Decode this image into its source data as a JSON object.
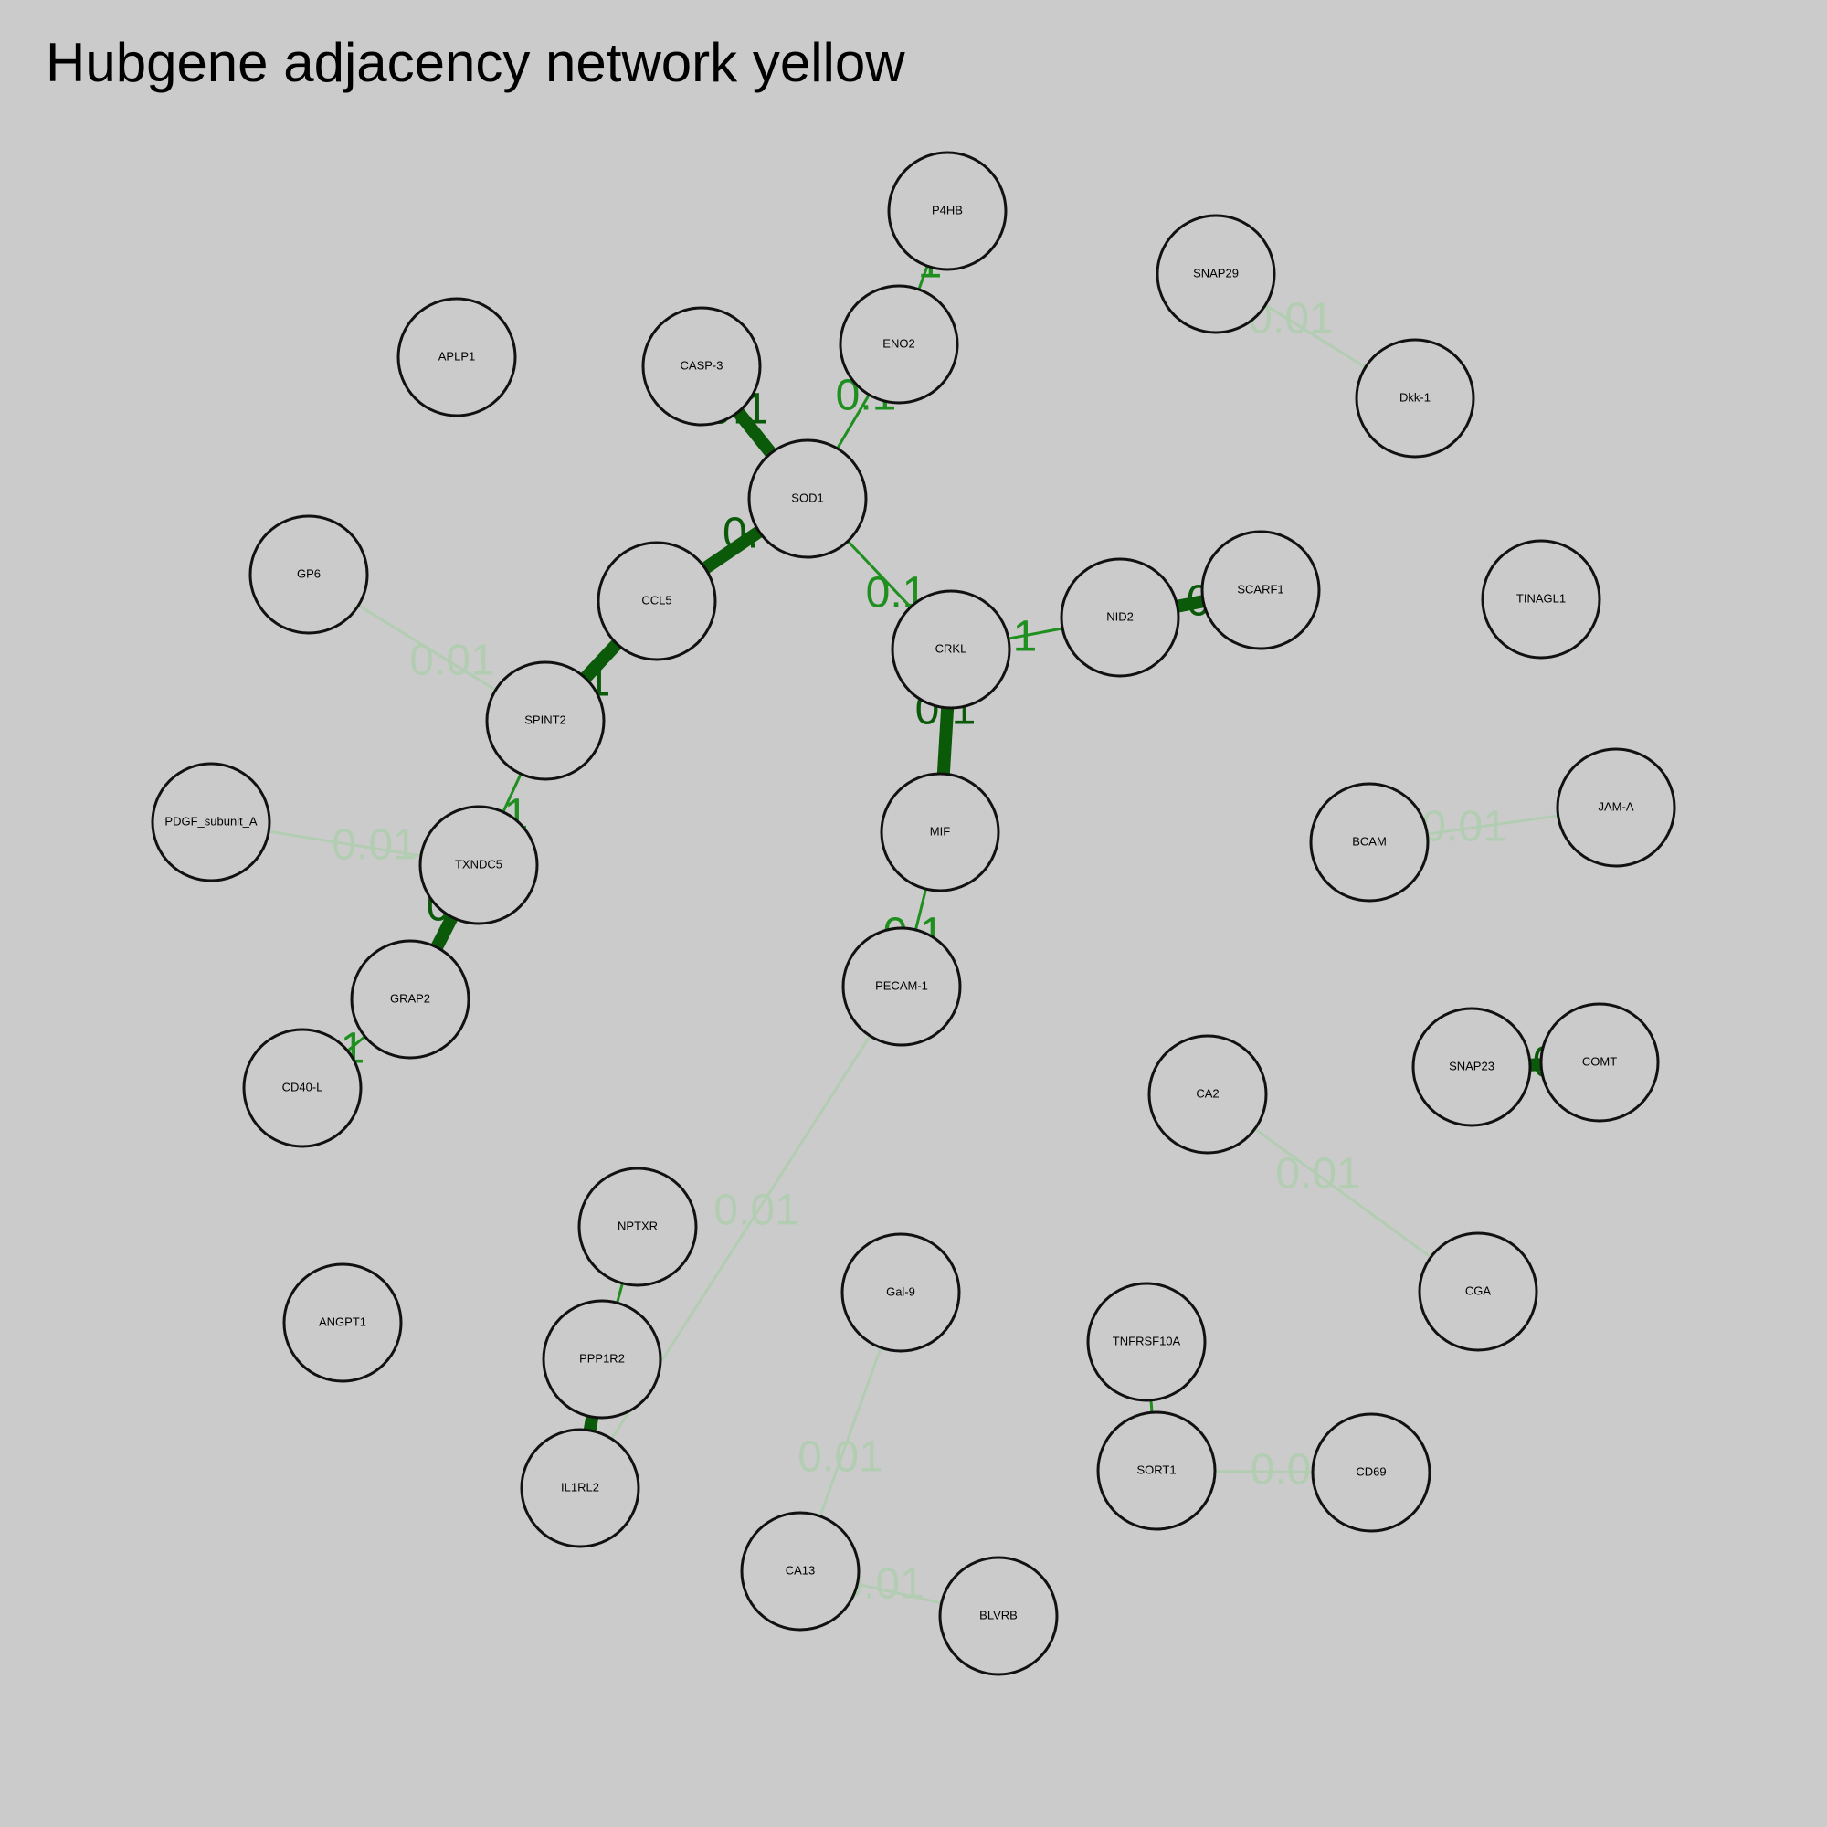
{
  "title": "Hubgene adjacency network yellow",
  "colors": {
    "background": "#cbcbcb",
    "strong_edge": "#0a5a0a",
    "medium_edge": "#1f8f1f",
    "weak_edge": "#b3cdb3",
    "node_stroke": "#111111"
  },
  "nodes": [
    {
      "id": "P4HB",
      "label": "P4HB"
    },
    {
      "id": "SNAP29",
      "label": "SNAP29"
    },
    {
      "id": "APLP1",
      "label": "APLP1"
    },
    {
      "id": "CASP-3",
      "label": "CASP-3"
    },
    {
      "id": "ENO2",
      "label": "ENO2"
    },
    {
      "id": "Dkk-1",
      "label": "Dkk-1"
    },
    {
      "id": "SOD1",
      "label": "SOD1"
    },
    {
      "id": "GP6",
      "label": "GP6"
    },
    {
      "id": "CCL5",
      "label": "CCL5"
    },
    {
      "id": "SCARF1",
      "label": "SCARF1"
    },
    {
      "id": "TINAGL1",
      "label": "TINAGL1"
    },
    {
      "id": "NID2",
      "label": "NID2"
    },
    {
      "id": "CRKL",
      "label": "CRKL"
    },
    {
      "id": "SPINT2",
      "label": "SPINT2"
    },
    {
      "id": "JAM-A",
      "label": "JAM-A"
    },
    {
      "id": "PDGF_subunit_A",
      "label": "PDGF_subunit_A"
    },
    {
      "id": "MIF",
      "label": "MIF"
    },
    {
      "id": "BCAM",
      "label": "BCAM"
    },
    {
      "id": "TXNDC5",
      "label": "TXNDC5"
    },
    {
      "id": "PECAM-1",
      "label": "PECAM-1"
    },
    {
      "id": "GRAP2",
      "label": "GRAP2"
    },
    {
      "id": "COMT",
      "label": "COMT"
    },
    {
      "id": "SNAP23",
      "label": "SNAP23"
    },
    {
      "id": "CD40-L",
      "label": "CD40-L"
    },
    {
      "id": "CA2",
      "label": "CA2"
    },
    {
      "id": "NPTXR",
      "label": "NPTXR"
    },
    {
      "id": "CGA",
      "label": "CGA"
    },
    {
      "id": "Gal-9",
      "label": "Gal-9"
    },
    {
      "id": "ANGPT1",
      "label": "ANGPT1"
    },
    {
      "id": "TNFRSF10A",
      "label": "TNFRSF10A"
    },
    {
      "id": "PPP1R2",
      "label": "PPP1R2"
    },
    {
      "id": "SORT1",
      "label": "SORT1"
    },
    {
      "id": "CD69",
      "label": "CD69"
    },
    {
      "id": "IL1RL2",
      "label": "IL1RL2"
    },
    {
      "id": "CA13",
      "label": "CA13"
    },
    {
      "id": "BLVRB",
      "label": "BLVRB"
    }
  ],
  "edges": [
    {
      "source": "ENO2",
      "target": "P4HB",
      "label": "1",
      "strength": "medium"
    },
    {
      "source": "SOD1",
      "target": "ENO2",
      "label": "0.1",
      "strength": "medium"
    },
    {
      "source": "SOD1",
      "target": "CASP-3",
      "label": "0.1",
      "strength": "strong"
    },
    {
      "source": "SOD1",
      "target": "CCL5",
      "label": "0.",
      "strength": "strong"
    },
    {
      "source": "SOD1",
      "target": "CRKL",
      "label": "0.1",
      "strength": "medium"
    },
    {
      "source": "CCL5",
      "target": "SPINT2",
      "label": "1",
      "strength": "strong"
    },
    {
      "source": "CRKL",
      "target": "NID2",
      "label": "1",
      "strength": "medium"
    },
    {
      "source": "NID2",
      "target": "SCARF1",
      "label": "0",
      "strength": "strong"
    },
    {
      "source": "CRKL",
      "target": "MIF",
      "label": "0.1",
      "strength": "strong"
    },
    {
      "source": "MIF",
      "target": "PECAM-1",
      "label": "0.1",
      "strength": "medium"
    },
    {
      "source": "SPINT2",
      "target": "TXNDC5",
      "label": "1",
      "strength": "medium"
    },
    {
      "source": "TXNDC5",
      "target": "GRAP2",
      "label": "0",
      "strength": "strong"
    },
    {
      "source": "GRAP2",
      "target": "CD40-L",
      "label": "1",
      "strength": "medium"
    },
    {
      "source": "GP6",
      "target": "SPINT2",
      "label": "0.01",
      "strength": "weak"
    },
    {
      "source": "PDGF_subunit_A",
      "target": "TXNDC5",
      "label": "0.01",
      "strength": "weak"
    },
    {
      "source": "SNAP29",
      "target": "Dkk-1",
      "label": "0.01",
      "strength": "weak"
    },
    {
      "source": "BCAM",
      "target": "JAM-A",
      "label": "0.01",
      "strength": "weak"
    },
    {
      "source": "SNAP23",
      "target": "COMT",
      "label": "0",
      "strength": "strong"
    },
    {
      "source": "CA2",
      "target": "CGA",
      "label": "0.01",
      "strength": "weak"
    },
    {
      "source": "PECAM-1",
      "target": "IL1RL2",
      "label": "0.01",
      "strength": "weak"
    },
    {
      "source": "NPTXR",
      "target": "PPP1R2",
      "label": "",
      "strength": "medium"
    },
    {
      "source": "PPP1R2",
      "target": "IL1RL2",
      "label": "",
      "strength": "strong"
    },
    {
      "source": "Gal-9",
      "target": "CA13",
      "label": "0.01",
      "strength": "weak"
    },
    {
      "source": "CA13",
      "target": "BLVRB",
      "label": "0.01",
      "strength": "weak"
    },
    {
      "source": "TNFRSF10A",
      "target": "SORT1",
      "label": "",
      "strength": "medium"
    },
    {
      "source": "SORT1",
      "target": "CD69",
      "label": "0.0",
      "strength": "weak"
    }
  ]
}
